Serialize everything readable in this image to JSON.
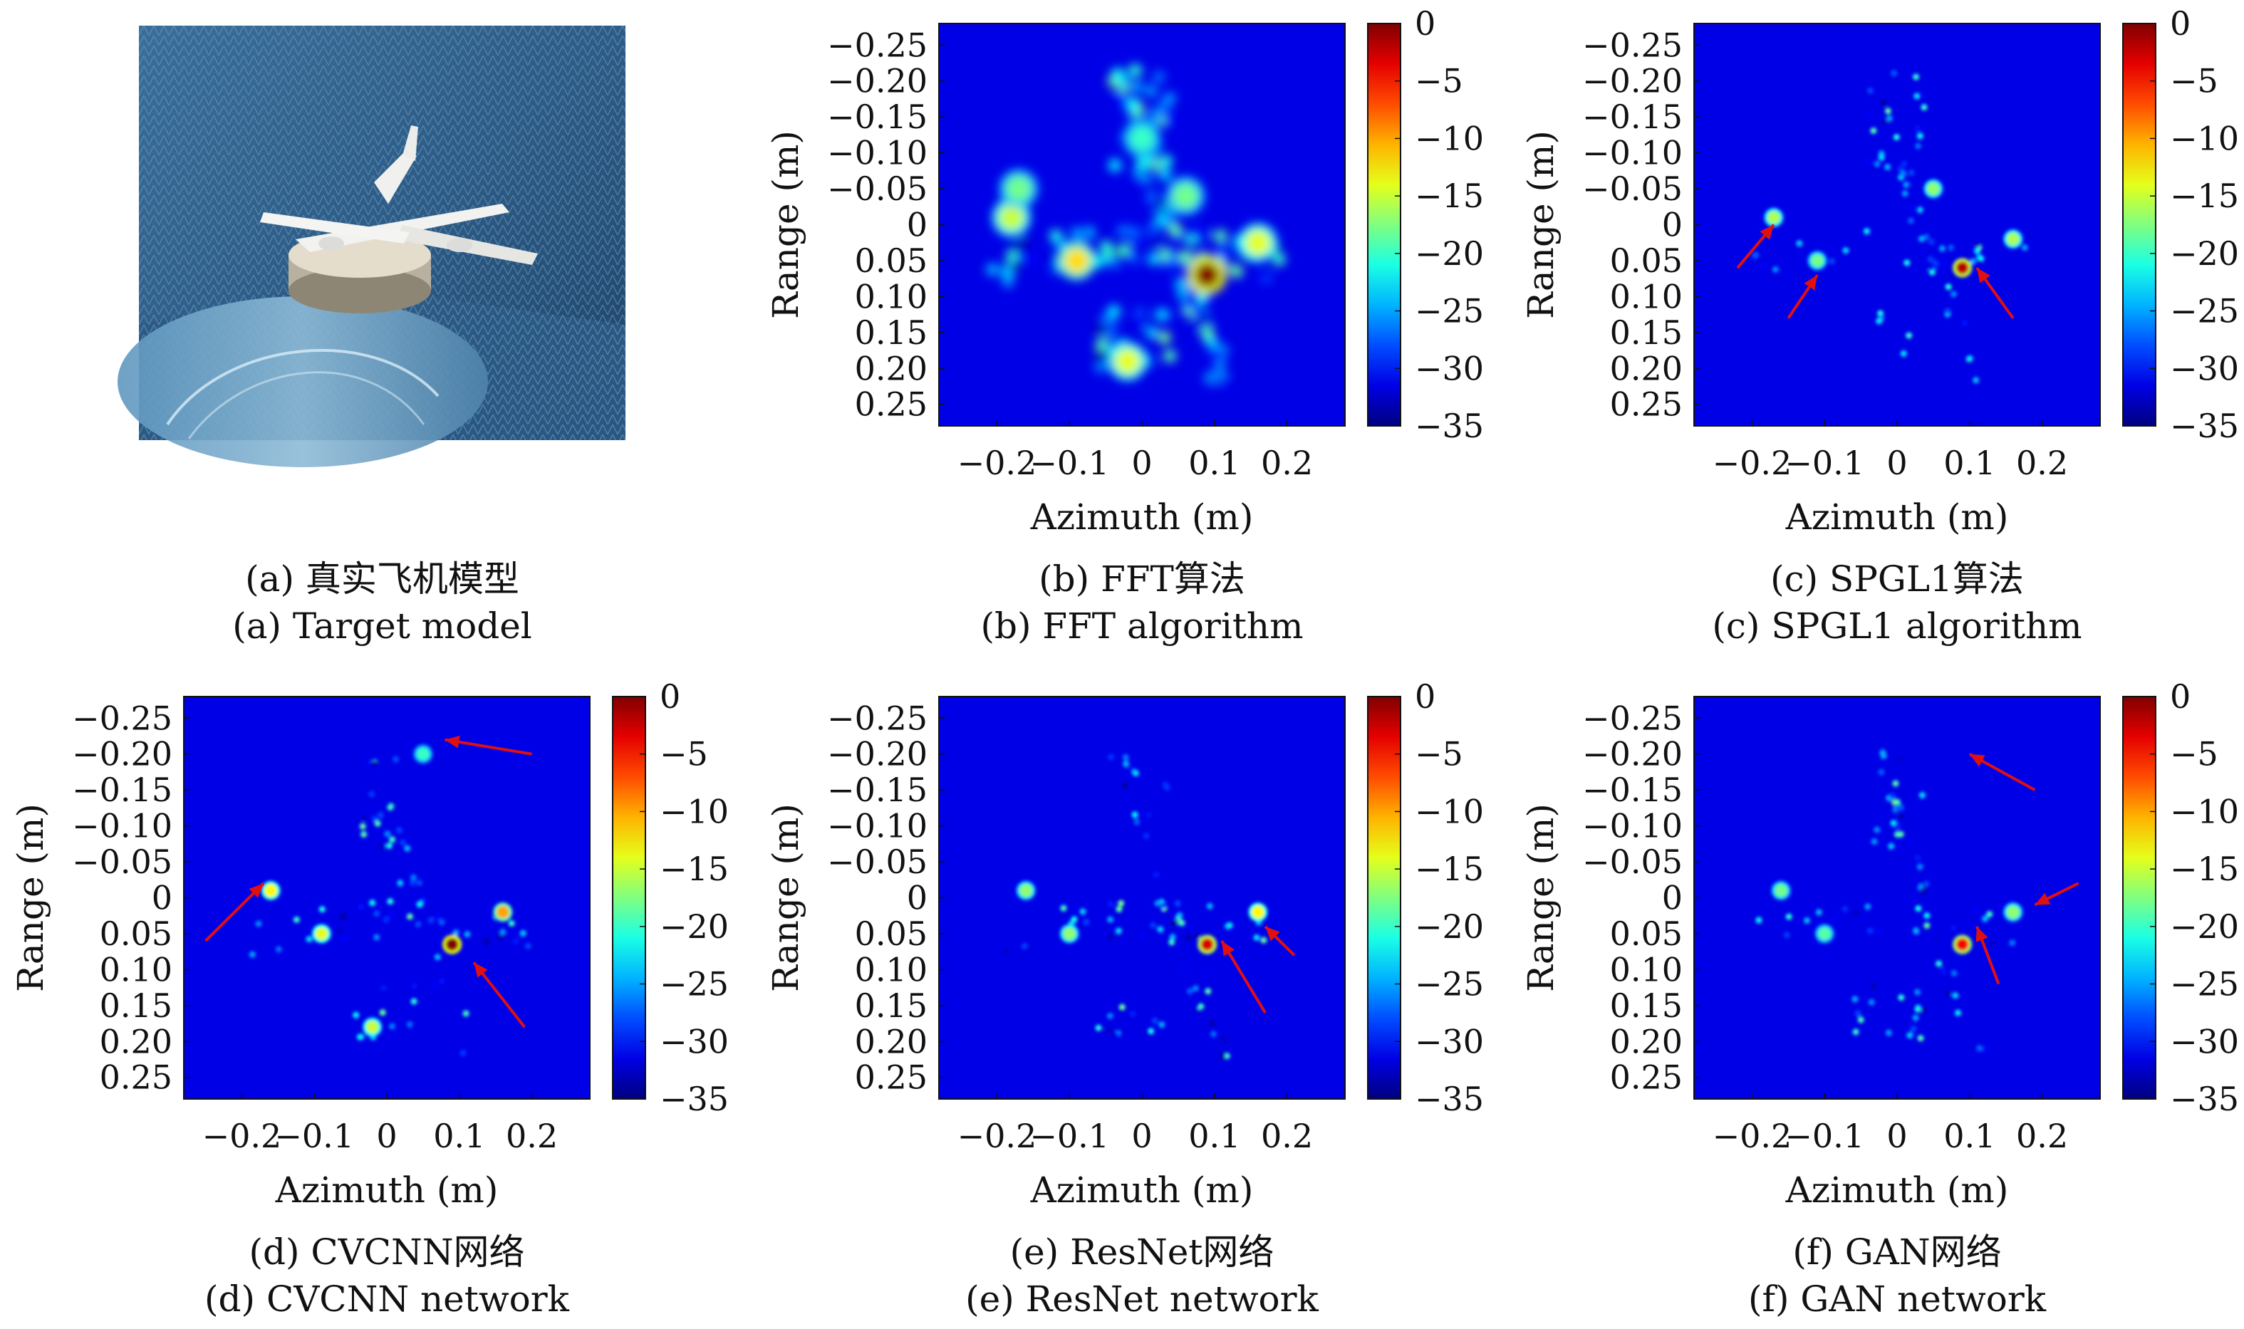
{
  "figure": {
    "panel_a": {
      "label": "(a)",
      "caption_cn": "(a) 真实飞机模型",
      "caption_en": "(a) Target model"
    }
  },
  "chart_data": [
    {
      "id": "b",
      "type": "heatmap",
      "caption_cn": "(b) FFT算法",
      "caption_en": "(b) FFT algorithm",
      "xlabel": "Azimuth (m)",
      "ylabel": "Range (m)",
      "xlim": [
        -0.28,
        0.28
      ],
      "ylim": [
        -0.28,
        0.28
      ],
      "xticks": [
        "-0.2",
        "-0.1",
        "0",
        "0.1",
        "0.2"
      ],
      "yticks": [
        "-0.25",
        "-0.20",
        "-0.15",
        "-0.10",
        "-0.05",
        "0",
        "0.05",
        "0.10",
        "0.15",
        "0.20",
        "0.25"
      ],
      "colorbar": {
        "ticks": [
          "0",
          "-5",
          "-10",
          "-15",
          "-20",
          "-25",
          "-30",
          "-35"
        ],
        "min": -35,
        "max": 0
      },
      "style": "blurred",
      "hotspots": [
        {
          "x": 0.09,
          "y": 0.07,
          "db": 0
        },
        {
          "x": -0.09,
          "y": 0.05,
          "db": -12
        },
        {
          "x": 0.16,
          "y": 0.025,
          "db": -14
        },
        {
          "x": -0.18,
          "y": -0.01,
          "db": -15
        },
        {
          "x": -0.17,
          "y": -0.05,
          "db": -18
        },
        {
          "x": -0.02,
          "y": 0.19,
          "db": -14
        },
        {
          "x": 0.0,
          "y": -0.12,
          "db": -20
        },
        {
          "x": 0.06,
          "y": -0.04,
          "db": -18
        }
      ],
      "arrows": []
    },
    {
      "id": "c",
      "type": "heatmap",
      "caption_cn": "(c) SPGL1算法",
      "caption_en": "(c) SPGL1 algorithm",
      "xlabel": "Azimuth (m)",
      "ylabel": "Range (m)",
      "xlim": [
        -0.28,
        0.28
      ],
      "ylim": [
        -0.28,
        0.28
      ],
      "xticks": [
        "-0.2",
        "-0.1",
        "0",
        "0.1",
        "0.2"
      ],
      "yticks": [
        "-0.25",
        "-0.20",
        "-0.15",
        "-0.10",
        "-0.05",
        "0",
        "0.05",
        "0.10",
        "0.15",
        "0.20",
        "0.25"
      ],
      "colorbar": {
        "ticks": [
          "0",
          "-5",
          "-10",
          "-15",
          "-20",
          "-25",
          "-30",
          "-35"
        ],
        "min": -35,
        "max": 0
      },
      "style": "sparse",
      "hotspots": [
        {
          "x": 0.09,
          "y": 0.06,
          "db": -2
        },
        {
          "x": 0.16,
          "y": 0.02,
          "db": -16
        },
        {
          "x": -0.17,
          "y": -0.01,
          "db": -16
        },
        {
          "x": -0.11,
          "y": 0.05,
          "db": -18
        },
        {
          "x": 0.05,
          "y": -0.05,
          "db": -17
        }
      ],
      "arrows": [
        {
          "x1": -0.22,
          "y1": 0.06,
          "x2": -0.17,
          "y2": 0.0
        },
        {
          "x1": -0.15,
          "y1": 0.13,
          "x2": -0.11,
          "y2": 0.07
        },
        {
          "x1": 0.16,
          "y1": 0.13,
          "x2": 0.11,
          "y2": 0.06
        }
      ]
    },
    {
      "id": "d",
      "type": "heatmap",
      "caption_cn": "(d) CVCNN网络",
      "caption_en": "(d) CVCNN network",
      "xlabel": "Azimuth (m)",
      "ylabel": "Range (m)",
      "xlim": [
        -0.28,
        0.28
      ],
      "ylim": [
        -0.28,
        0.28
      ],
      "xticks": [
        "-0.2",
        "-0.1",
        "0",
        "0.1",
        "0.2"
      ],
      "yticks": [
        "-0.25",
        "-0.20",
        "-0.15",
        "-0.10",
        "-0.05",
        "0",
        "0.05",
        "0.10",
        "0.15",
        "0.20",
        "0.25"
      ],
      "colorbar": {
        "ticks": [
          "0",
          "-5",
          "-10",
          "-15",
          "-20",
          "-25",
          "-30",
          "-35"
        ],
        "min": -35,
        "max": 0
      },
      "style": "sparse",
      "hotspots": [
        {
          "x": 0.09,
          "y": 0.065,
          "db": 0
        },
        {
          "x": 0.16,
          "y": 0.02,
          "db": -10
        },
        {
          "x": -0.16,
          "y": -0.01,
          "db": -13
        },
        {
          "x": -0.09,
          "y": 0.05,
          "db": -14
        },
        {
          "x": -0.02,
          "y": 0.18,
          "db": -15
        },
        {
          "x": 0.05,
          "y": -0.2,
          "db": -20
        }
      ],
      "arrows": [
        {
          "x1": 0.2,
          "y1": -0.2,
          "x2": 0.08,
          "y2": -0.22
        },
        {
          "x1": -0.25,
          "y1": 0.06,
          "x2": -0.17,
          "y2": -0.02
        },
        {
          "x1": 0.19,
          "y1": 0.18,
          "x2": 0.12,
          "y2": 0.09
        }
      ]
    },
    {
      "id": "e",
      "type": "heatmap",
      "caption_cn": "(e) ResNet网络",
      "caption_en": "(e) ResNet network",
      "xlabel": "Azimuth (m)",
      "ylabel": "Range (m)",
      "xlim": [
        -0.28,
        0.28
      ],
      "ylim": [
        -0.28,
        0.28
      ],
      "xticks": [
        "-0.2",
        "-0.1",
        "0",
        "0.1",
        "0.2"
      ],
      "yticks": [
        "-0.25",
        "-0.20",
        "-0.15",
        "-0.10",
        "-0.05",
        "0",
        "0.05",
        "0.10",
        "0.15",
        "0.20",
        "0.25"
      ],
      "colorbar": {
        "ticks": [
          "0",
          "-5",
          "-10",
          "-15",
          "-20",
          "-25",
          "-30",
          "-35"
        ],
        "min": -35,
        "max": 0
      },
      "style": "sparse",
      "hotspots": [
        {
          "x": 0.09,
          "y": 0.065,
          "db": -3
        },
        {
          "x": 0.16,
          "y": 0.02,
          "db": -13
        },
        {
          "x": -0.16,
          "y": -0.01,
          "db": -17
        },
        {
          "x": -0.1,
          "y": 0.05,
          "db": -17
        }
      ],
      "arrows": [
        {
          "x1": 0.17,
          "y1": 0.16,
          "x2": 0.11,
          "y2": 0.06
        },
        {
          "x1": 0.21,
          "y1": 0.08,
          "x2": 0.17,
          "y2": 0.04
        }
      ]
    },
    {
      "id": "f",
      "type": "heatmap",
      "caption_cn": "(f) GAN网络",
      "caption_en": "(f) GAN network",
      "xlabel": "Azimuth (m)",
      "ylabel": "Range (m)",
      "xlim": [
        -0.28,
        0.28
      ],
      "ylim": [
        -0.28,
        0.28
      ],
      "xticks": [
        "-0.2",
        "-0.1",
        "0",
        "0.1",
        "0.2"
      ],
      "yticks": [
        "-0.25",
        "-0.20",
        "-0.15",
        "-0.10",
        "-0.05",
        "0",
        "0.05",
        "0.10",
        "0.15",
        "0.20",
        "0.25"
      ],
      "colorbar": {
        "ticks": [
          "0",
          "-5",
          "-10",
          "-15",
          "-20",
          "-25",
          "-30",
          "-35"
        ],
        "min": -35,
        "max": 0
      },
      "style": "sparse",
      "hotspots": [
        {
          "x": 0.09,
          "y": 0.065,
          "db": -4
        },
        {
          "x": 0.16,
          "y": 0.02,
          "db": -17
        },
        {
          "x": -0.16,
          "y": -0.01,
          "db": -18
        },
        {
          "x": -0.1,
          "y": 0.05,
          "db": -19
        }
      ],
      "arrows": [
        {
          "x1": 0.19,
          "y1": -0.15,
          "x2": 0.1,
          "y2": -0.2
        },
        {
          "x1": 0.25,
          "y1": -0.02,
          "x2": 0.19,
          "y2": 0.01
        },
        {
          "x1": 0.14,
          "y1": 0.12,
          "x2": 0.11,
          "y2": 0.04
        }
      ]
    }
  ]
}
